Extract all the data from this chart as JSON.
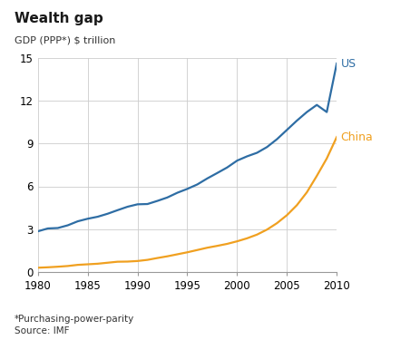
{
  "title": "Wealth gap",
  "ylabel": "GDP (PPP*) $ trillion",
  "footnote1": "*Purchasing-power-parity",
  "footnote2": "Source: IMF",
  "us_label": "US",
  "china_label": "China",
  "us_color": "#2e6da4",
  "china_color": "#f0a020",
  "background_color": "#ffffff",
  "grid_color": "#cccccc",
  "xlim": [
    1980,
    2010
  ],
  "ylim": [
    0,
    15
  ],
  "yticks": [
    0,
    3,
    6,
    9,
    12,
    15
  ],
  "xticks": [
    1980,
    1985,
    1990,
    1995,
    2000,
    2005,
    2010
  ],
  "us_data": {
    "years": [
      1980,
      1981,
      1982,
      1983,
      1984,
      1985,
      1986,
      1987,
      1988,
      1989,
      1990,
      1991,
      1992,
      1993,
      1994,
      1995,
      1996,
      1997,
      1998,
      1999,
      2000,
      2001,
      2002,
      2003,
      2004,
      2005,
      2006,
      2007,
      2008,
      2009,
      2010
    ],
    "values": [
      2.85,
      3.05,
      3.08,
      3.27,
      3.55,
      3.73,
      3.87,
      4.08,
      4.33,
      4.57,
      4.74,
      4.76,
      4.98,
      5.22,
      5.55,
      5.82,
      6.13,
      6.55,
      6.93,
      7.32,
      7.8,
      8.1,
      8.35,
      8.75,
      9.3,
      9.95,
      10.6,
      11.2,
      11.7,
      11.2,
      14.6
    ]
  },
  "china_data": {
    "years": [
      1980,
      1981,
      1982,
      1983,
      1984,
      1985,
      1986,
      1987,
      1988,
      1989,
      1990,
      1991,
      1992,
      1993,
      1994,
      1995,
      1996,
      1997,
      1998,
      1999,
      2000,
      2001,
      2002,
      2003,
      2004,
      2005,
      2006,
      2007,
      2008,
      2009,
      2010
    ],
    "values": [
      0.3,
      0.33,
      0.37,
      0.42,
      0.5,
      0.54,
      0.58,
      0.65,
      0.72,
      0.73,
      0.77,
      0.85,
      0.98,
      1.1,
      1.24,
      1.38,
      1.54,
      1.7,
      1.83,
      1.97,
      2.15,
      2.36,
      2.62,
      2.97,
      3.42,
      3.98,
      4.68,
      5.58,
      6.73,
      7.95,
      9.45
    ]
  }
}
